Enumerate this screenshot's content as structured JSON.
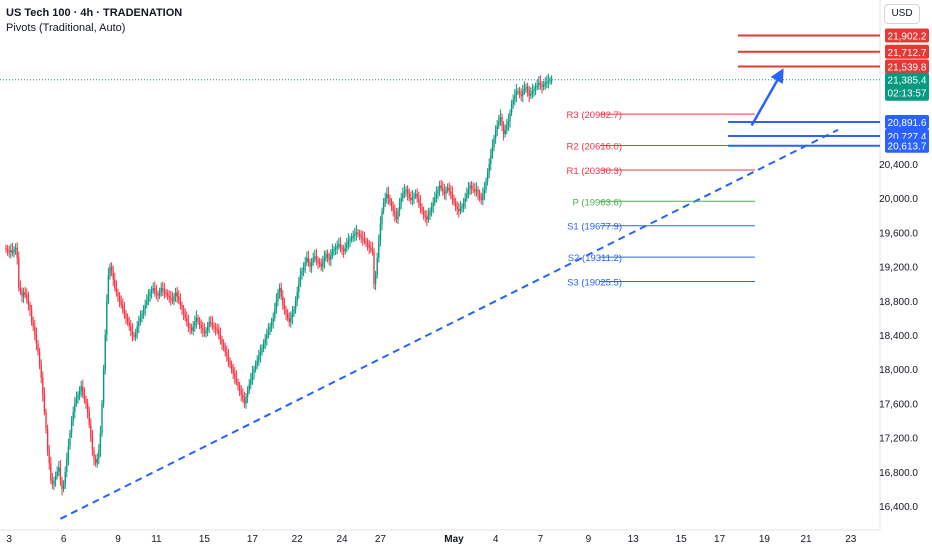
{
  "header": {
    "title": "US Tech 100 · 4h · TRADENATION",
    "indicator": "Pivots (Traditional, Auto)",
    "currency": "USD"
  },
  "chart_data": {
    "type": "candlestick",
    "ylim": [
      16200,
      22100
    ],
    "y_ticks": [
      16400,
      16800,
      17200,
      17600,
      18000,
      18400,
      18800,
      19200,
      19600,
      20000,
      20400
    ],
    "x_ticks": [
      {
        "label": "3",
        "candle": 2
      },
      {
        "label": "6",
        "candle": 36
      },
      {
        "label": "9",
        "candle": 70
      },
      {
        "label": "11",
        "candle": 94
      },
      {
        "label": "15",
        "candle": 124
      },
      {
        "label": "17",
        "candle": 154
      },
      {
        "label": "22",
        "candle": 182
      },
      {
        "label": "24",
        "candle": 210
      },
      {
        "label": "27",
        "candle": 234
      },
      {
        "label": "May",
        "candle": 280
      },
      {
        "label": "4",
        "candle": 306
      },
      {
        "label": "7",
        "candle": 334
      },
      {
        "label": "9",
        "candle": 364
      },
      {
        "label": "13",
        "candle": 392
      },
      {
        "label": "15",
        "candle": 422
      },
      {
        "label": "17",
        "candle": 446
      },
      {
        "label": "19",
        "candle": 474
      },
      {
        "label": "21",
        "candle": 500
      },
      {
        "label": "23",
        "candle": 528
      }
    ],
    "closes": [
      19400,
      19380,
      19370,
      19390,
      19360,
      19400,
      19420,
      19300,
      18950,
      18920,
      18850,
      18900,
      18870,
      18820,
      18750,
      18700,
      18550,
      18500,
      18400,
      18300,
      18200,
      18050,
      17900,
      17700,
      17500,
      17300,
      17050,
      16900,
      16700,
      16650,
      16700,
      16750,
      16800,
      16850,
      16700,
      16600,
      16650,
      16800,
      16950,
      17100,
      17250,
      17400,
      17500,
      17600,
      17650,
      17700,
      17750,
      17800,
      17700,
      17650,
      17600,
      17500,
      17350,
      17200,
      17050,
      16950,
      16900,
      16950,
      17050,
      17250,
      17600,
      18000,
      18400,
      18800,
      19100,
      19200,
      19150,
      19050,
      18950,
      18900,
      18850,
      18800,
      18750,
      18700,
      18650,
      18600,
      18550,
      18500,
      18450,
      18400,
      18380,
      18420,
      18500,
      18550,
      18600,
      18650,
      18700,
      18750,
      18800,
      18850,
      18900,
      18920,
      18950,
      18900,
      18880,
      18860,
      18900,
      18950,
      18920,
      18900,
      18880,
      18860,
      18840,
      18820,
      18800,
      18850,
      18900,
      18850,
      18800,
      18750,
      18700,
      18650,
      18600,
      18550,
      18500,
      18480,
      18450,
      18500,
      18550,
      18600,
      18560,
      18520,
      18480,
      18450,
      18420,
      18450,
      18500,
      18550,
      18530,
      18510,
      18490,
      18470,
      18450,
      18400,
      18350,
      18300,
      18250,
      18200,
      18150,
      18100,
      18050,
      18000,
      17950,
      17900,
      17850,
      17800,
      17750,
      17700,
      17650,
      17600,
      17680,
      17750,
      17820,
      17880,
      17950,
      18000,
      18050,
      18100,
      18150,
      18200,
      18250,
      18300,
      18350,
      18400,
      18450,
      18500,
      18550,
      18600,
      18700,
      18800,
      18900,
      18950,
      18850,
      18750,
      18700,
      18650,
      18600,
      18550,
      18600,
      18650,
      18700,
      18800,
      18900,
      19000,
      19100,
      19150,
      19200,
      19250,
      19300,
      19250,
      19200,
      19250,
      19300,
      19320,
      19280,
      19250,
      19230,
      19200,
      19250,
      19300,
      19350,
      19300,
      19280,
      19330,
      19380,
      19400,
      19420,
      19440,
      19460,
      19420,
      19400,
      19380,
      19420,
      19460,
      19500,
      19520,
      19540,
      19560,
      19580,
      19600,
      19580,
      19560,
      19540,
      19520,
      19500,
      19480,
      19450,
      19420,
      19400,
      19380,
      19000,
      19100,
      19300,
      19500,
      19700,
      19850,
      19950,
      20000,
      20050,
      20000,
      19950,
      19900,
      19850,
      19800,
      19750,
      19850,
      19950,
      20000,
      20050,
      20080,
      20100,
      20050,
      20000,
      19980,
      20010,
      20030,
      20050,
      20000,
      19950,
      19900,
      19850,
      19800,
      19780,
      19750,
      19800,
      19850,
      19900,
      19950,
      20000,
      20050,
      20100,
      20150,
      20120,
      20080,
      20050,
      20100,
      20120,
      20080,
      20050,
      20000,
      19950,
      19900,
      19870,
      19850,
      19880,
      19900,
      19950,
      20000,
      20050,
      20100,
      20150,
      20120,
      20100,
      20080,
      20100,
      20050,
      20000,
      19980,
      20050,
      20100,
      20200,
      20300,
      20400,
      20500,
      20600,
      20700,
      20800,
      20850,
      20900,
      20950,
      20850,
      20750,
      20800,
      20850,
      20900,
      21000,
      21100,
      21150,
      21200,
      21250,
      21250,
      21220,
      21200,
      21250,
      21280,
      21300,
      21250,
      21200,
      21220,
      21250,
      21280,
      21300,
      21320,
      21350,
      21330,
      21300,
      21320,
      21350,
      21360,
      21370,
      21380,
      21385
    ],
    "last_price": 21385.4,
    "countdown": "02:13:57",
    "pivots": [
      {
        "label": "R3",
        "value": 20982.7,
        "text": "R3 (20982.7)"
      },
      {
        "label": "R2",
        "value": 20616.0,
        "text": "R2 (20616.0)"
      },
      {
        "label": "R1",
        "value": 20330.3,
        "text": "R1 (20330.3)"
      },
      {
        "label": "P",
        "value": 19963.6,
        "text": "P (19963.6)"
      },
      {
        "label": "S1",
        "value": 19677.9,
        "text": "S1 (19677.9)"
      },
      {
        "label": "S2",
        "value": 19311.2,
        "text": "S2 (19311.2)"
      },
      {
        "label": "S3",
        "value": 19025.5,
        "text": "S3 (19025.5)"
      }
    ],
    "resistance_levels": [
      {
        "value": 21902.2,
        "text": "21,902.2"
      },
      {
        "value": 21712.7,
        "text": "21,712.7"
      },
      {
        "value": 21539.8,
        "text": "21,539.8"
      }
    ],
    "support_levels": [
      {
        "value": 20891.6,
        "text": "20,891.6"
      },
      {
        "value": 20727.4,
        "text": "20,727.4"
      },
      {
        "value": 20613.7,
        "text": "20,613.7"
      }
    ],
    "trendline": {
      "from": {
        "candle": 34,
        "value": 16250
      },
      "to": {
        "candle": 520,
        "value": 20800
      }
    },
    "arrow": {
      "from": {
        "candle": 466,
        "value": 20850
      },
      "to": {
        "candle": 486,
        "value": 21520
      }
    },
    "colors": {
      "up": "#089981",
      "down": "#f23645",
      "resistance": "#e53935",
      "support": "#2962ff",
      "pivot_r": "#f23645",
      "pivot_p": "#4caf50",
      "pivot_s": "#2962ff",
      "price": "#089981"
    }
  }
}
